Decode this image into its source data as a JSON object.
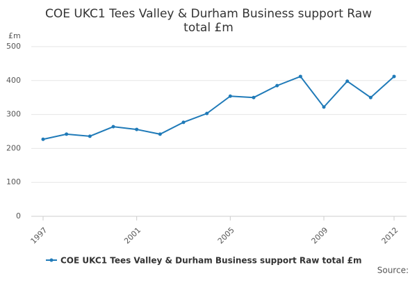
{
  "chart_data": {
    "type": "line",
    "title": "COE UKC1 Tees Valley & Durham Business support Raw total £m",
    "y_label": "£m",
    "source": "Source:",
    "x": [
      1997,
      1998,
      1999,
      2000,
      2001,
      2002,
      2003,
      2004,
      2005,
      2006,
      2007,
      2008,
      2009,
      2010,
      2011,
      2012
    ],
    "series": [
      {
        "name": "COE UKC1 Tees Valley & Durham Business support Raw total £m",
        "color": "#1f7ab8",
        "values": [
          227,
          242,
          236,
          264,
          256,
          242,
          277,
          303,
          354,
          350,
          385,
          412,
          322,
          398,
          350,
          412
        ]
      }
    ],
    "xlim": [
      1997,
      2012
    ],
    "xticks": [
      1997,
      2001,
      2005,
      2009,
      2012
    ],
    "ylim": [
      0,
      500
    ],
    "yticks": [
      0,
      100,
      200,
      300,
      400,
      500
    ],
    "grid": true,
    "legend": "bottom"
  }
}
